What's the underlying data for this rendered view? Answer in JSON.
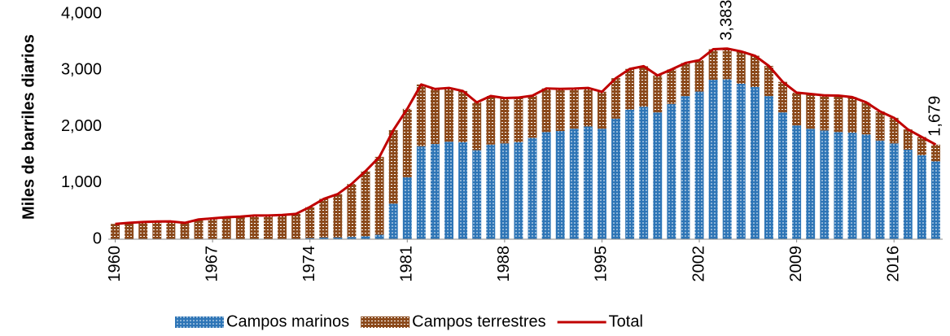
{
  "chart_data": {
    "type": "stacked_bar_line",
    "y_label": "Miles de barriles diarios",
    "x": [
      1960,
      1961,
      1962,
      1963,
      1964,
      1965,
      1966,
      1967,
      1968,
      1969,
      1970,
      1971,
      1972,
      1973,
      1974,
      1975,
      1976,
      1977,
      1978,
      1979,
      1980,
      1981,
      1982,
      1983,
      1984,
      1985,
      1986,
      1987,
      1988,
      1989,
      1990,
      1991,
      1992,
      1993,
      1994,
      1995,
      1996,
      1997,
      1998,
      1999,
      2000,
      2001,
      2002,
      2003,
      2004,
      2005,
      2006,
      2007,
      2008,
      2009,
      2010,
      2011,
      2012,
      2013,
      2014,
      2015,
      2016,
      2017,
      2018,
      2019
    ],
    "xlim": [
      1959.5,
      2019.5
    ],
    "xticks": [
      1960,
      1967,
      1974,
      1981,
      1988,
      1995,
      2002,
      2009,
      2016
    ],
    "ylim": [
      0,
      4000
    ],
    "yticks": [
      0,
      {
        "value": 1000,
        "label": "1,000"
      },
      {
        "value": 2000,
        "label": "2,000"
      },
      {
        "value": 3000,
        "label": "3,000"
      },
      {
        "value": 4000,
        "label": "4,000"
      }
    ],
    "series": [
      {
        "name": "Campos marinos",
        "color": "#2e75b6",
        "kind": "bar",
        "values": [
          0,
          0,
          0,
          0,
          0,
          0,
          0,
          0,
          0,
          0,
          0,
          0,
          0,
          0,
          20,
          30,
          30,
          40,
          50,
          80,
          630,
          1100,
          1650,
          1690,
          1730,
          1720,
          1580,
          1680,
          1700,
          1720,
          1800,
          1900,
          1920,
          1960,
          2000,
          1960,
          2140,
          2300,
          2350,
          2250,
          2400,
          2540,
          2620,
          2830,
          2840,
          2760,
          2700,
          2540,
          2250,
          2020,
          1960,
          1930,
          1900,
          1890,
          1860,
          1750,
          1700,
          1590,
          1490,
          1380
        ]
      },
      {
        "name": "Campos terrestres",
        "color": "#8b4a1c",
        "kind": "bar",
        "values": [
          271,
          290,
          305,
          314,
          315,
          290,
          350,
          370,
          390,
          400,
          420,
          420,
          430,
          450,
          551,
          686,
          770,
          941,
          1159,
          1381,
          1306,
          1213,
          1096,
          976,
          955,
          910,
          848,
          861,
          806,
          793,
          748,
          776,
          748,
          713,
          685,
          657,
          718,
          722,
          720,
          656,
          612,
          587,
          557,
          541,
          543,
          573,
          556,
          536,
          542,
          581,
          617,
          623,
          648,
          632,
          569,
          517,
          454,
          358,
          323,
          299
        ]
      },
      {
        "name": "Total",
        "color": "#c00000",
        "kind": "line",
        "values": [
          271,
          290,
          305,
          314,
          315,
          290,
          350,
          370,
          390,
          400,
          420,
          420,
          430,
          450,
          571,
          716,
          800,
          981,
          1209,
          1461,
          1936,
          2313,
          2746,
          2666,
          2685,
          2630,
          2428,
          2541,
          2506,
          2513,
          2548,
          2676,
          2668,
          2673,
          2685,
          2617,
          2858,
          3022,
          3070,
          2906,
          3012,
          3127,
          3177,
          3371,
          3383,
          3333,
          3256,
          3076,
          2792,
          2601,
          2577,
          2553,
          2548,
          2522,
          2429,
          2267,
          2154,
          1948,
          1813,
          1679
        ],
        "value_labels": [
          null,
          null,
          null,
          null,
          null,
          null,
          null,
          null,
          null,
          null,
          null,
          null,
          null,
          null,
          null,
          null,
          null,
          null,
          null,
          null,
          null,
          null,
          null,
          null,
          null,
          null,
          null,
          null,
          null,
          null,
          null,
          null,
          null,
          null,
          null,
          null,
          null,
          null,
          null,
          null,
          null,
          null,
          null,
          null,
          "3,383",
          null,
          null,
          null,
          null,
          null,
          null,
          null,
          null,
          null,
          null,
          null,
          null,
          null,
          null,
          "1,679"
        ]
      }
    ],
    "legend": "bottom"
  }
}
